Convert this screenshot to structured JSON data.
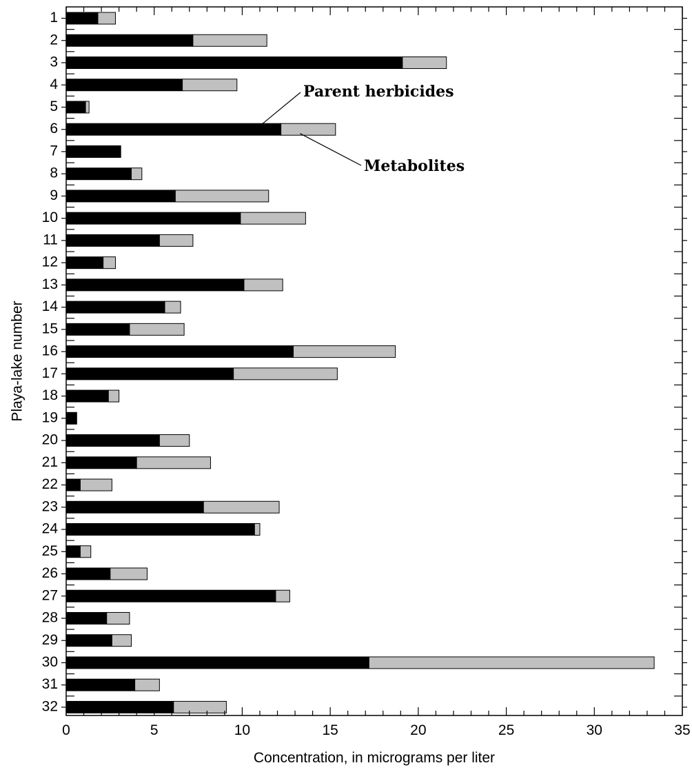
{
  "chart_data": {
    "type": "bar",
    "orientation": "horizontal",
    "stacked": true,
    "categories": [
      "1",
      "2",
      "3",
      "4",
      "5",
      "6",
      "7",
      "8",
      "9",
      "10",
      "11",
      "12",
      "13",
      "14",
      "15",
      "16",
      "17",
      "18",
      "19",
      "20",
      "21",
      "22",
      "23",
      "24",
      "25",
      "26",
      "27",
      "28",
      "29",
      "30",
      "31",
      "32"
    ],
    "series": [
      {
        "name": "Parent herbicides",
        "color": "#000000",
        "values": [
          1.8,
          7.2,
          19.1,
          6.6,
          1.1,
          12.2,
          3.1,
          3.7,
          6.2,
          9.9,
          5.3,
          2.1,
          10.1,
          5.6,
          3.6,
          12.9,
          9.5,
          2.4,
          0.6,
          5.3,
          4.0,
          0.8,
          7.8,
          10.7,
          0.8,
          2.5,
          11.9,
          2.3,
          2.6,
          17.2,
          3.9,
          6.1
        ]
      },
      {
        "name": "Metabolites",
        "color": "#c0c0c0",
        "values": [
          1.0,
          4.2,
          2.5,
          3.1,
          0.2,
          3.1,
          0.0,
          0.6,
          5.3,
          3.7,
          1.9,
          0.7,
          2.2,
          0.9,
          3.1,
          5.8,
          5.9,
          0.6,
          0.0,
          1.7,
          4.2,
          1.8,
          4.3,
          0.3,
          0.6,
          2.1,
          0.8,
          1.3,
          1.1,
          16.2,
          1.4,
          3.0
        ]
      }
    ],
    "xlabel": "Concentration, in micrograms per liter",
    "ylabel": "Playa-lake number",
    "xlim": [
      0,
      35
    ],
    "x_ticks": [
      0,
      5,
      10,
      15,
      20,
      25,
      30,
      35
    ],
    "x_tick_labels": [
      "0",
      "5",
      "10",
      "15",
      "20",
      "25",
      "30",
      "35"
    ],
    "grid": false,
    "legend": "annotation labels with leader lines",
    "annotations": [
      {
        "series": "Parent herbicides",
        "text": "Parent herbicides",
        "category": "6"
      },
      {
        "series": "Metabolites",
        "text": "Metabolites",
        "category": "6"
      }
    ]
  }
}
